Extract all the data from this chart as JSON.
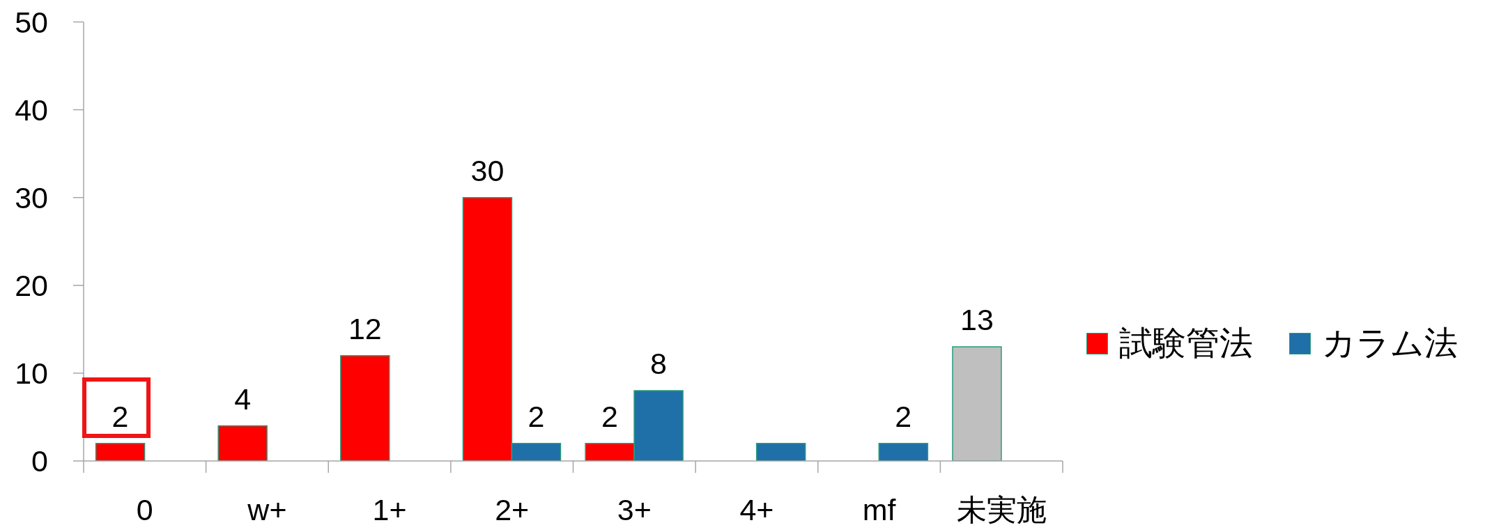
{
  "chart_data": {
    "type": "bar",
    "categories": [
      "0",
      "w+",
      "1+",
      "2+",
      "3+",
      "4+",
      "mf",
      "未実施"
    ],
    "series": [
      {
        "name": "試験管法",
        "color": "#ff0000",
        "colors": [
          "#ff0000",
          "#ff0000",
          "#ff0000",
          "#ff0000",
          "#ff0000",
          "#ff0000",
          "#ff0000",
          "#bfbfbf"
        ],
        "values": [
          2,
          4,
          12,
          30,
          2,
          null,
          null,
          13
        ],
        "value_labels": [
          "2",
          "4",
          "12",
          "30",
          "2",
          null,
          null,
          "13"
        ]
      },
      {
        "name": "カラム法",
        "color": "#1f6fa8",
        "values": [
          null,
          null,
          null,
          2,
          8,
          2,
          2,
          null
        ],
        "value_labels": [
          null,
          null,
          null,
          "2",
          "8",
          null,
          "2",
          null
        ]
      }
    ],
    "ylim": [
      0,
      50
    ],
    "yticks": [
      0,
      10,
      20,
      30,
      40,
      50
    ],
    "legend": "right"
  }
}
